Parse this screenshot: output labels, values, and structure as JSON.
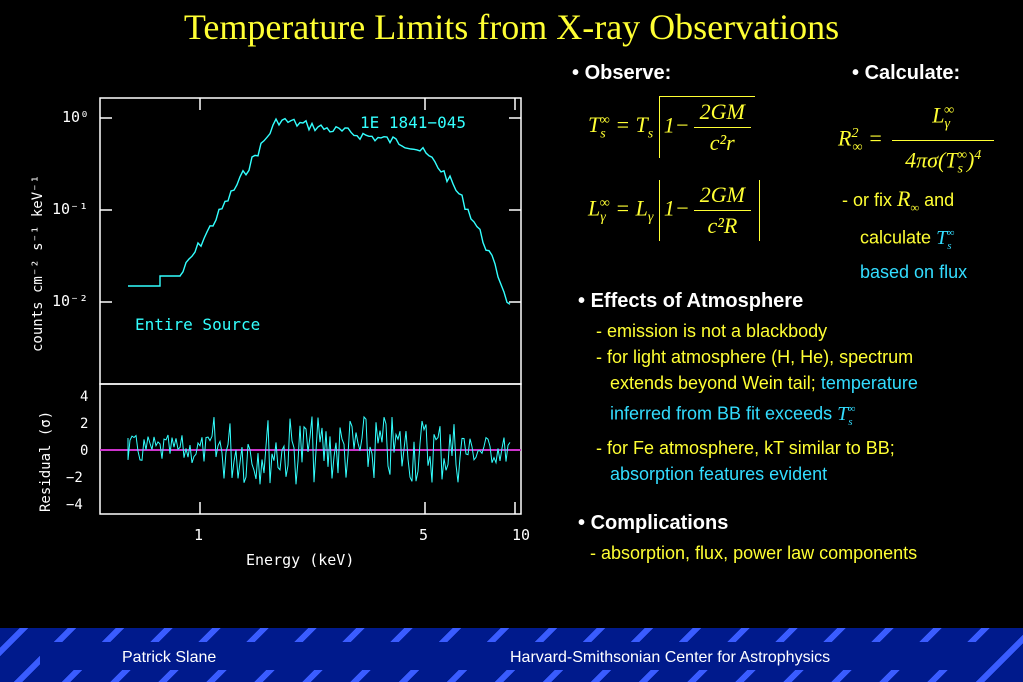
{
  "slide": {
    "title": "Temperature Limits from X-ray Observations",
    "observe_head": "Observe:",
    "calculate_head": "Calculate:",
    "or_fix_prefix": "- or fix",
    "or_fix_and": "and",
    "calculate_word": "calculate",
    "based_on_flux": "based on flux",
    "effects_head": "Effects of Atmosphere",
    "effects_line1": "- emission is not a blackbody",
    "effects_line2": "- for light atmosphere (H, He), spectrum",
    "effects_line3a": "extends beyond Wein tail;",
    "effects_line3b": "temperature",
    "effects_line4": "inferred from BB fit exceeds",
    "effects_line5": "- for Fe atmosphere, kT similar to BB;",
    "effects_line6": "absorption features evident",
    "complications_head": "Complications",
    "complications_line": "- absorption, flux, power law components",
    "footer_left": "Patrick Slane",
    "footer_right": "Harvard-Smithsonian Center for Astrophysics"
  },
  "plot": {
    "source_label": "1E 1841−045",
    "region_label": "Entire Source",
    "xlabel": "Energy (keV)",
    "ylabel_top": "counts cm⁻² s⁻¹ keV⁻¹",
    "ylabel_bottom": "Residual (σ)",
    "x_ticks": [
      "1",
      "5",
      "10"
    ],
    "y_ticks_top": [
      "10⁰",
      "10⁻¹",
      "10⁻²"
    ],
    "y_ticks_bottom": [
      "4",
      "2",
      "0",
      "−2",
      "−4"
    ],
    "data_color": "#33ffff",
    "zero_line_color": "#cc33cc"
  }
}
